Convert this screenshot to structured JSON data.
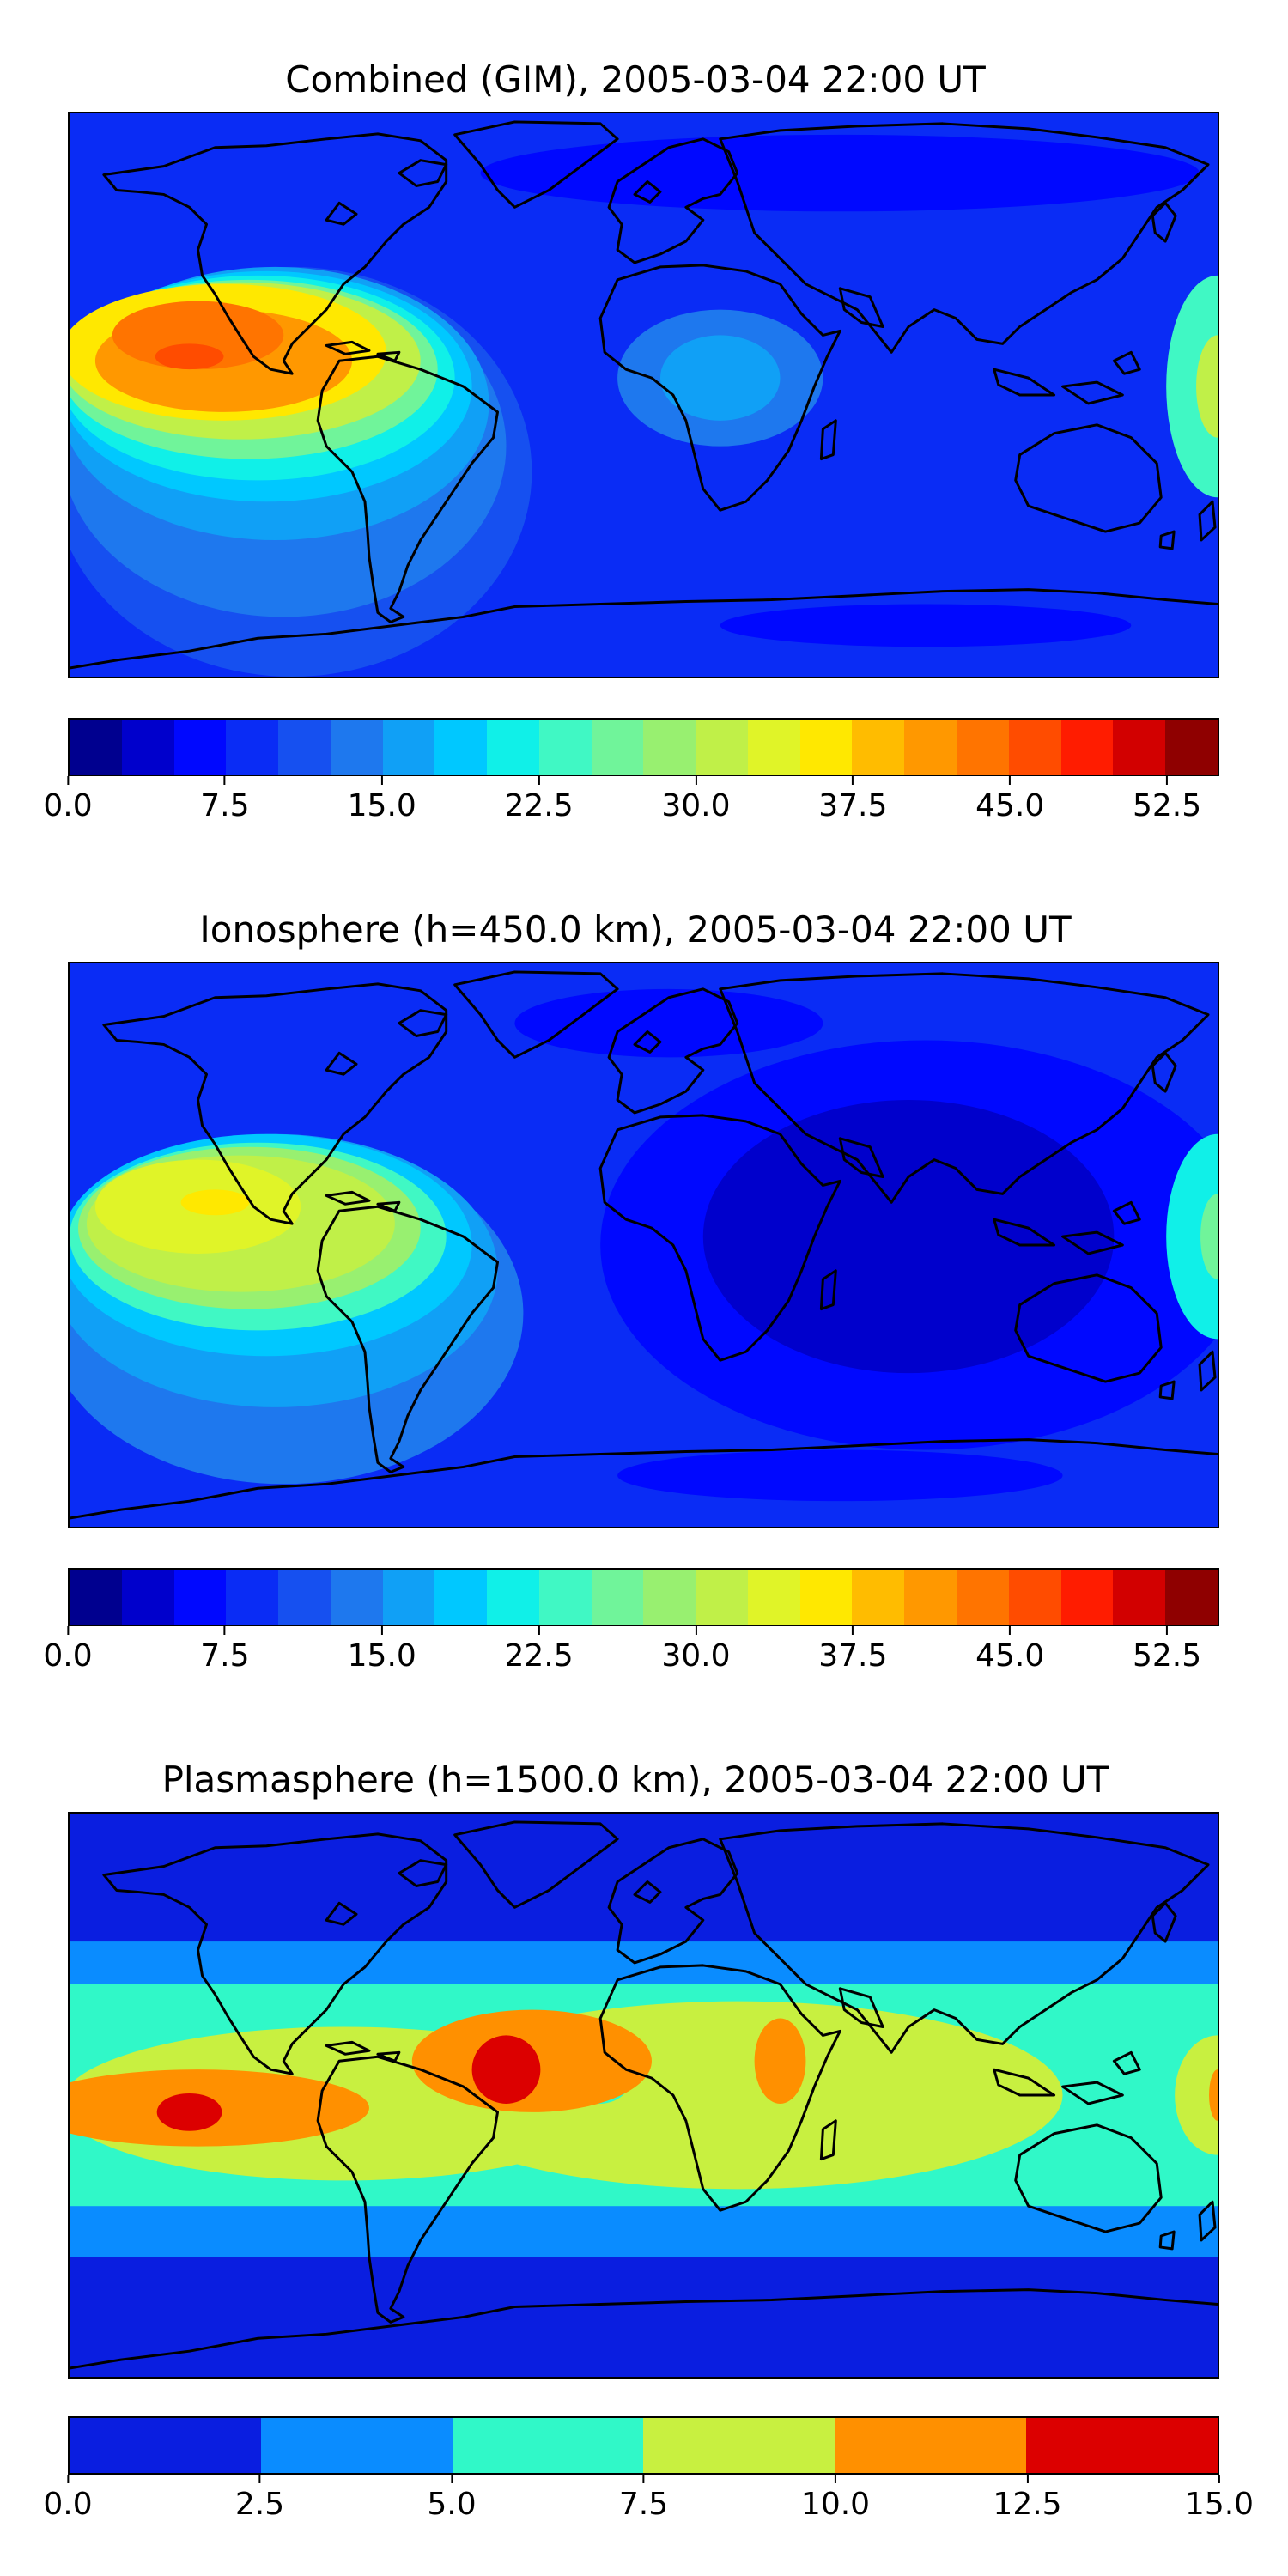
{
  "panels": [
    {
      "title": "Combined (GIM), 2005-03-04 22:00 UT",
      "field": "combined",
      "colorbar": {
        "colors": [
          "#00008f",
          "#0000cc",
          "#0008ff",
          "#0a2cf5",
          "#1650f0",
          "#1e78ee",
          "#10a0f6",
          "#00c8ff",
          "#10f0e8",
          "#40f8c4",
          "#70f49a",
          "#98f070",
          "#c0f048",
          "#e0f428",
          "#ffe800",
          "#ffbc00",
          "#ff9800",
          "#ff7400",
          "#ff4c00",
          "#ff1c00",
          "#d20000",
          "#8f0000"
        ],
        "tick_labels": [
          "0.0",
          "7.5",
          "15.0",
          "22.5",
          "30.0",
          "37.5",
          "45.0",
          "52.5"
        ],
        "tick_values": [
          0,
          7.5,
          15,
          22.5,
          30,
          37.5,
          45,
          52.5
        ],
        "vmin": 0,
        "vmax": 55
      }
    },
    {
      "title": "Ionosphere  (h=450.0 km), 2005-03-04 22:00 UT",
      "field": "ionosphere",
      "colorbar": {
        "colors": [
          "#00008f",
          "#0000cc",
          "#0008ff",
          "#0a2cf5",
          "#1650f0",
          "#1e78ee",
          "#10a0f6",
          "#00c8ff",
          "#10f0e8",
          "#40f8c4",
          "#70f49a",
          "#98f070",
          "#c0f048",
          "#e0f428",
          "#ffe800",
          "#ffbc00",
          "#ff9800",
          "#ff7400",
          "#ff4c00",
          "#ff1c00",
          "#d20000",
          "#8f0000"
        ],
        "tick_labels": [
          "0.0",
          "7.5",
          "15.0",
          "22.5",
          "30.0",
          "37.5",
          "45.0",
          "52.5"
        ],
        "tick_values": [
          0,
          7.5,
          15,
          22.5,
          30,
          37.5,
          45,
          52.5
        ],
        "vmin": 0,
        "vmax": 55
      }
    },
    {
      "title": "Plasmasphere (h=1500.0 km), 2005-03-04 22:00 UT",
      "field": "plasmasphere",
      "colorbar": {
        "colors": [
          "#0a1ee0",
          "#0a8cff",
          "#30f8c8",
          "#c8f040",
          "#ff9000",
          "#dc0000"
        ],
        "tick_labels": [
          "0.0",
          "2.5",
          "5.0",
          "7.5",
          "10.0",
          "12.5",
          "15.0"
        ],
        "tick_values": [
          0,
          2.5,
          5,
          7.5,
          10,
          12.5,
          15
        ],
        "vmin": 0,
        "vmax": 15
      }
    }
  ],
  "coastline_color": "#000000"
}
